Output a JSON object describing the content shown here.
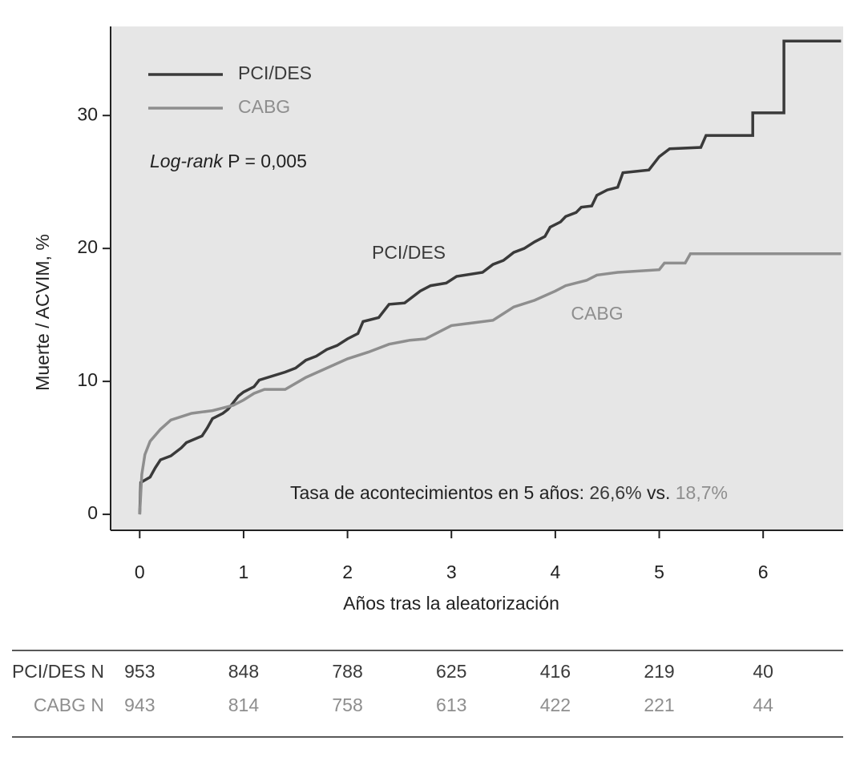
{
  "chart_data": {
    "type": "line",
    "xlabel": "Años tras la aleatorización",
    "ylabel": "Muerte / ACVIM, %",
    "xlim": [
      -0.28,
      6.77
    ],
    "ylim": [
      -1.2,
      36.7
    ],
    "xticks": [
      0,
      1,
      2,
      3,
      4,
      5,
      6
    ],
    "yticks": [
      0,
      10,
      20,
      30
    ],
    "background": "#e6e6e6",
    "legend": "top-left",
    "series": [
      {
        "name": "PCI/DES",
        "color": "#3a3a3a",
        "x": [
          0,
          0.01,
          0.1,
          0.15,
          0.2,
          0.3,
          0.4,
          0.45,
          0.6,
          0.65,
          0.7,
          0.8,
          0.85,
          0.95,
          1.0,
          1.1,
          1.15,
          1.4,
          1.5,
          1.6,
          1.7,
          1.8,
          1.9,
          2.0,
          2.1,
          2.15,
          2.3,
          2.4,
          2.55,
          2.7,
          2.8,
          2.95,
          3.05,
          3.3,
          3.4,
          3.5,
          3.6,
          3.7,
          3.8,
          3.9,
          3.95,
          4.05,
          4.1,
          4.2,
          4.25,
          4.35,
          4.4,
          4.5,
          4.6,
          4.65,
          4.9,
          5.0,
          5.1,
          5.4,
          5.45,
          5.9,
          5.9,
          6.2,
          6.2,
          6.75
        ],
        "values": [
          0,
          2.4,
          2.8,
          3.5,
          4.1,
          4.4,
          5.0,
          5.4,
          5.9,
          6.5,
          7.2,
          7.6,
          7.9,
          8.9,
          9.2,
          9.6,
          10.1,
          10.7,
          11.0,
          11.6,
          11.9,
          12.4,
          12.7,
          13.2,
          13.6,
          14.5,
          14.8,
          15.8,
          15.9,
          16.8,
          17.2,
          17.4,
          17.9,
          18.2,
          18.8,
          19.1,
          19.7,
          20.0,
          20.5,
          20.9,
          21.6,
          22.0,
          22.4,
          22.7,
          23.1,
          23.2,
          24.0,
          24.4,
          24.6,
          25.7,
          25.9,
          26.9,
          27.5,
          27.6,
          28.5,
          28.5,
          30.2,
          30.2,
          35.6,
          35.6
        ]
      },
      {
        "name": "CABG",
        "color": "#8e8e8e",
        "x": [
          0,
          0.02,
          0.05,
          0.1,
          0.2,
          0.3,
          0.5,
          0.7,
          0.9,
          1.0,
          1.1,
          1.2,
          1.4,
          1.6,
          1.8,
          2.0,
          2.2,
          2.4,
          2.6,
          2.75,
          3.0,
          3.2,
          3.4,
          3.5,
          3.6,
          3.8,
          4.0,
          4.1,
          4.3,
          4.4,
          4.6,
          5.0,
          5.05,
          5.25,
          5.3,
          6.75
        ],
        "values": [
          0,
          3.0,
          4.5,
          5.5,
          6.4,
          7.1,
          7.6,
          7.8,
          8.2,
          8.6,
          9.1,
          9.4,
          9.4,
          10.3,
          11.0,
          11.7,
          12.2,
          12.8,
          13.1,
          13.2,
          14.2,
          14.4,
          14.6,
          15.1,
          15.6,
          16.1,
          16.8,
          17.2,
          17.6,
          18.0,
          18.2,
          18.4,
          18.9,
          18.9,
          19.6,
          19.6
        ]
      }
    ],
    "annotations": {
      "logrank_italic": "Log-rank",
      "logrank_p": "P = 0,005",
      "label_pci": "PCI/DES",
      "label_cabg": "CABG",
      "rate_text": "Tasa de acontecimientos en 5 años:",
      "rate_pci": "26,6%",
      "rate_vs": "vs.",
      "rate_cabg": "18,7%"
    },
    "at_risk": [
      {
        "label": "PCI/DES N",
        "values": [
          953,
          848,
          788,
          625,
          416,
          219,
          40
        ]
      },
      {
        "label": "CABG N",
        "values": [
          943,
          814,
          758,
          613,
          422,
          221,
          44
        ]
      }
    ]
  }
}
